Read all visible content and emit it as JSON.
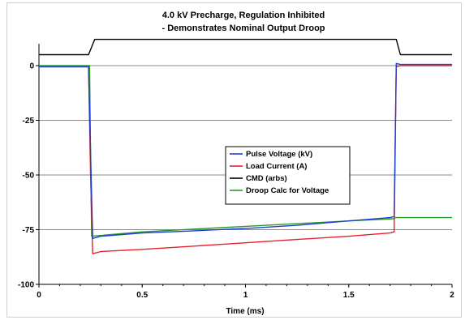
{
  "chart_data": {
    "type": "line",
    "title_lines": [
      "4.0 kV Precharge, Regulation Inhibited",
      "- Demonstrates Nominal Output Droop"
    ],
    "xlabel": "Time (ms)",
    "ylabel": "",
    "xlim": [
      0,
      2
    ],
    "ylim": [
      -100,
      10
    ],
    "x_ticks": [
      0,
      0.5,
      1,
      1.5,
      2
    ],
    "x_tick_labels": [
      "0",
      "0.5",
      "1",
      "1.5",
      "2"
    ],
    "y_ticks": [
      0,
      -25,
      -50,
      -75,
      -100
    ],
    "y_tick_labels": [
      "0",
      "-25",
      "-50",
      "-75",
      "-100"
    ],
    "grid": "horizontal",
    "legend_position": "center",
    "series": [
      {
        "name": "Pulse Voltage (kV)",
        "color": "#1f3fd0",
        "x": [
          0,
          0.24,
          0.25,
          0.26,
          0.3,
          0.5,
          0.75,
          1.0,
          1.25,
          1.5,
          1.7,
          1.72,
          1.73,
          1.75,
          1.85,
          2.0
        ],
        "y": [
          -0.5,
          -0.5,
          -40,
          -79,
          -78,
          -76.5,
          -75.5,
          -74.5,
          -73,
          -71,
          -69.5,
          -69,
          1,
          0.5,
          0.5,
          0.5
        ]
      },
      {
        "name": "Load Current (A)",
        "color": "#e8202a",
        "x": [
          0,
          0.24,
          0.25,
          0.26,
          0.3,
          0.5,
          0.75,
          1.0,
          1.25,
          1.5,
          1.7,
          1.72,
          1.73,
          1.75,
          1.85,
          2.0
        ],
        "y": [
          -0.5,
          -0.5,
          -50,
          -86,
          -85,
          -84,
          -82.5,
          -81,
          -79.5,
          -78,
          -76.5,
          -76,
          -0.5,
          0,
          0,
          0
        ]
      },
      {
        "name": "CMD (arbs)",
        "color": "#000000",
        "x": [
          0,
          0.24,
          0.27,
          1.71,
          1.73,
          1.75,
          2.0
        ],
        "y": [
          5,
          5,
          12,
          12,
          12,
          5,
          5
        ]
      },
      {
        "name": "Droop Calc for Voltage",
        "color": "#2a9a2a",
        "x": [
          0,
          0.245,
          0.25,
          0.255,
          0.5,
          1.0,
          1.5,
          1.72,
          1.725,
          2.0
        ],
        "y": [
          0,
          0,
          -40,
          -78,
          -76,
          -73.5,
          -71,
          -70,
          -69.5,
          -69.5
        ]
      }
    ]
  }
}
